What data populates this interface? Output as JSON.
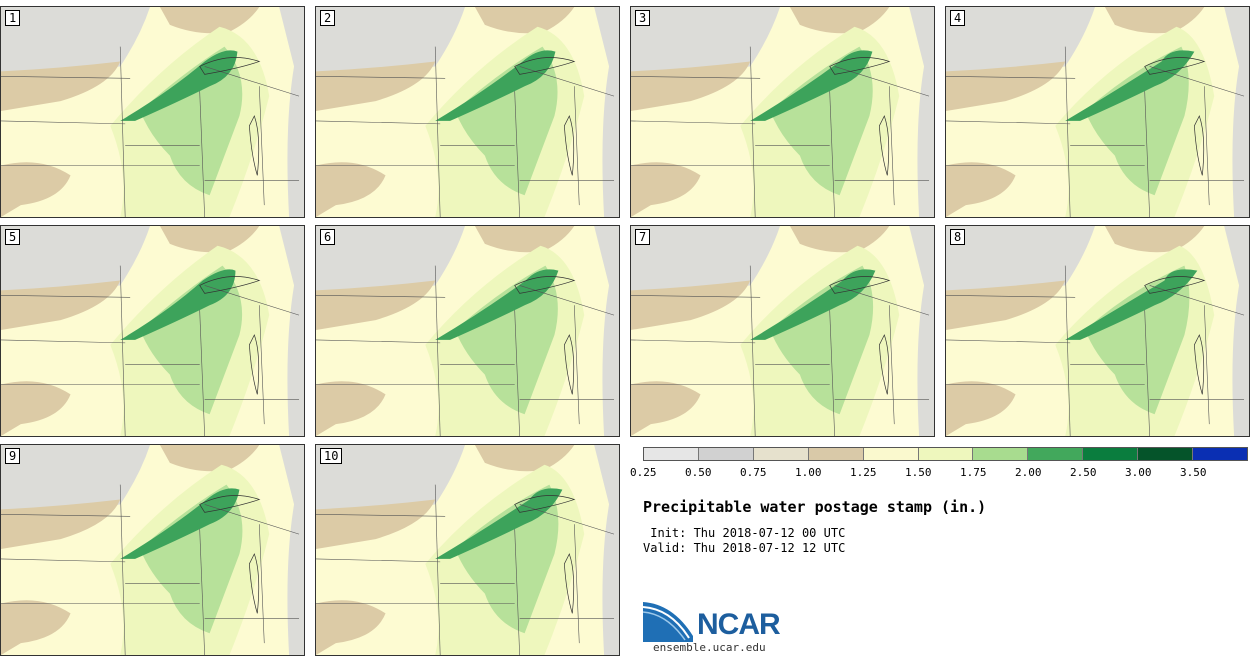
{
  "figure": {
    "title": "Precipitable water postage stamp (in.)",
    "init": " Init: Thu 2018-07-12 00 UTC",
    "valid": "Valid: Thu 2018-07-12 12 UTC",
    "logo_text": "NCAR",
    "website": "ensemble.ucar.edu"
  },
  "panels": [
    {
      "label": "1"
    },
    {
      "label": "2"
    },
    {
      "label": "3"
    },
    {
      "label": "4"
    },
    {
      "label": "5"
    },
    {
      "label": "6"
    },
    {
      "label": "7"
    },
    {
      "label": "8"
    },
    {
      "label": "9"
    },
    {
      "label": "10"
    }
  ],
  "colorbar": {
    "ticks": [
      "0.25",
      "0.50",
      "0.75",
      "1.00",
      "1.25",
      "1.50",
      "1.75",
      "2.00",
      "2.50",
      "3.00",
      "3.50"
    ],
    "colors": [
      "#e6e6e6",
      "#d1d1d1",
      "#e6e1cd",
      "#d9c9a8",
      "#faf9ce",
      "#eef7bd",
      "#a8dc8f",
      "#42a85c",
      "#0a7d3e",
      "#05542a",
      "#0a2fb3"
    ]
  },
  "colors": {
    "dry_gray": "#dcdcd8",
    "tan": "#dccba6",
    "pale_yellow": "#fdfbd2",
    "light_green": "#eef7bd",
    "mid_green": "#b7e19a",
    "dark_green": "#3da35b"
  }
}
